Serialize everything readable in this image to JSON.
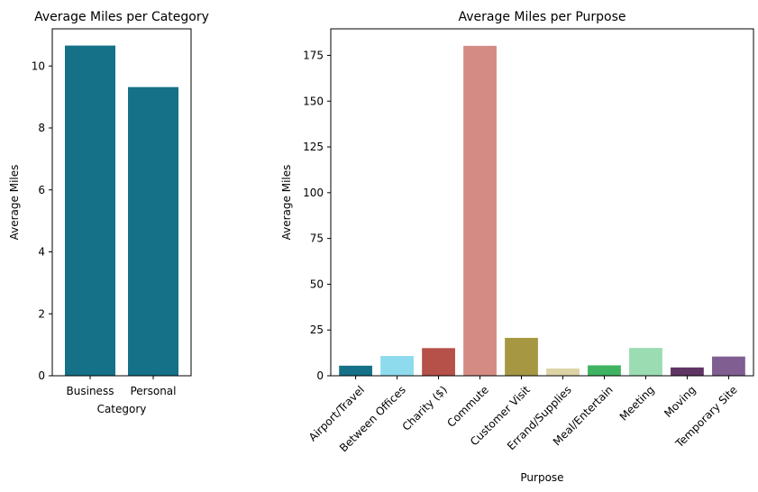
{
  "chart_data": [
    {
      "type": "bar",
      "title": "Average Miles per Category",
      "xlabel": "Category",
      "ylabel": "Average Miles",
      "ylim": [
        0,
        11.2
      ],
      "yticks": [
        0,
        2,
        4,
        6,
        8,
        10
      ],
      "grid": false,
      "categories": [
        "Business",
        "Personal"
      ],
      "values": [
        10.66,
        9.32
      ],
      "colors": [
        "#157187",
        "#157187"
      ]
    },
    {
      "type": "bar",
      "title": "Average Miles per Purpose",
      "xlabel": "Purpose",
      "ylabel": "Average Miles",
      "ylim": [
        0,
        189.5
      ],
      "yticks": [
        0,
        25,
        50,
        75,
        100,
        125,
        150,
        175
      ],
      "grid": false,
      "categories": [
        "Airport/Travel",
        "Between Offices",
        "Charity ($)",
        "Commute",
        "Customer Visit",
        "Errand/Supplies",
        "Meal/Entertain",
        "Meeting",
        "Moving",
        "Temporary Site"
      ],
      "values": [
        5.5,
        10.8,
        15.1,
        180.2,
        20.7,
        3.97,
        5.7,
        15.2,
        4.55,
        10.5
      ],
      "colors": [
        "#157187",
        "#8fdbee",
        "#b55148",
        "#d48b84",
        "#a69843",
        "#dcd3a7",
        "#3fb362",
        "#9bdcb3",
        "#5e3563",
        "#805e92"
      ]
    }
  ]
}
